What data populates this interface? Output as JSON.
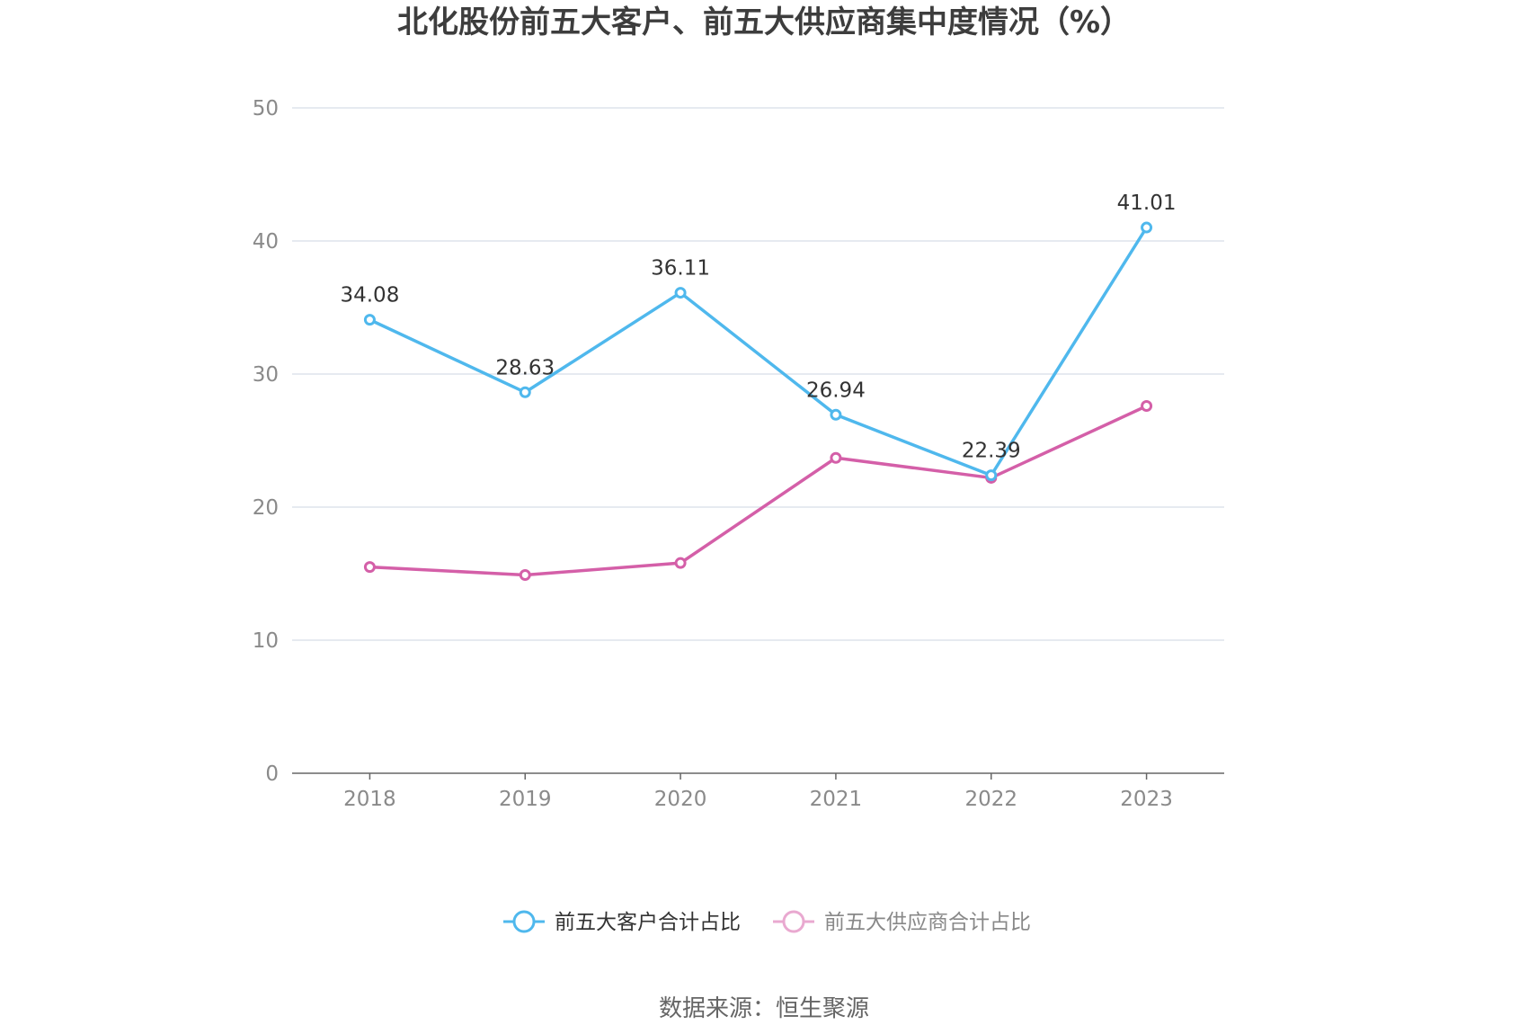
{
  "title": "北化股份前五大客户、前五大供应商集中度情况（%）",
  "source": "数据来源：恒生聚源",
  "colors": {
    "customers": "#4fb8ed",
    "suppliers": "#d45fa8",
    "suppliers_legend": "#e9a9d0",
    "grid": "#dde3ec",
    "axis": "#666666"
  },
  "chart_data": {
    "type": "line",
    "title": "北化股份前五大客户、前五大供应商集中度情况（%）",
    "x": [
      "2018",
      "2019",
      "2020",
      "2021",
      "2022",
      "2023"
    ],
    "ylim": [
      0,
      50
    ],
    "yticks": [
      "0",
      "10",
      "20",
      "30",
      "40",
      "50"
    ],
    "grid": true,
    "legend_position": "bottom",
    "series": [
      {
        "name": "前五大客户合计占比",
        "values": [
          34.08,
          28.63,
          36.11,
          26.94,
          22.39,
          41.01
        ],
        "labels": [
          "34.08",
          "28.63",
          "36.11",
          "26.94",
          "22.39",
          "41.01"
        ]
      },
      {
        "name": "前五大供应商合计占比",
        "values": [
          15.5,
          14.9,
          15.8,
          23.7,
          22.2,
          27.6
        ]
      }
    ]
  }
}
